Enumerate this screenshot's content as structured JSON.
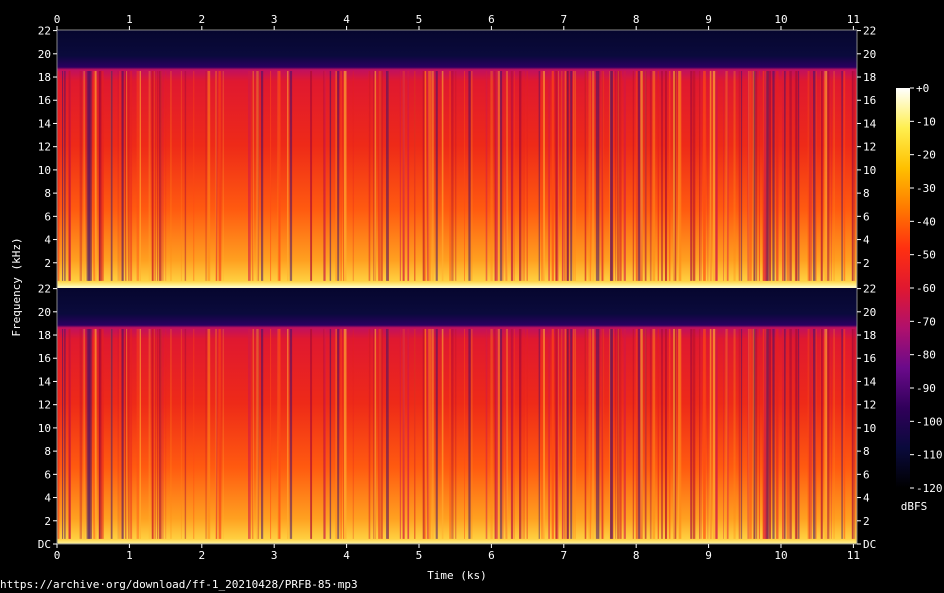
{
  "chart_data": {
    "type": "heatmap",
    "subtype": "spectrogram",
    "channels": 2,
    "xlabel": "Time (ks)",
    "ylabel": "Frequency (kHz)",
    "xlim": [
      0,
      11.05
    ],
    "ylim": [
      0,
      22.05
    ],
    "x_ticks": [
      "0",
      "1",
      "2",
      "3",
      "4",
      "5",
      "6",
      "7",
      "8",
      "9",
      "10",
      "11"
    ],
    "y_ticks_top": [
      "2",
      "4",
      "6",
      "8",
      "10",
      "12",
      "14",
      "16",
      "18",
      "20",
      "22"
    ],
    "y_ticks_bottom": [
      "DC",
      "2",
      "4",
      "6",
      "8",
      "10",
      "12",
      "14",
      "16",
      "18",
      "20",
      "22"
    ],
    "top_tick_22": "22",
    "cutoff_khz": 19,
    "colorbar": {
      "label": "dBFS",
      "range": [
        -120,
        0
      ],
      "ticks": [
        "+0",
        "-10",
        "-20",
        "-30",
        "-40",
        "-50",
        "-60",
        "-70",
        "-80",
        "-90",
        "-100",
        "-110",
        "-120"
      ]
    },
    "colormap": [
      "#000000",
      "#0a0a3c",
      "#30005a",
      "#6a0a8a",
      "#b0106c",
      "#e01830",
      "#ff3010",
      "#ff7a00",
      "#ffc000",
      "#ffef50",
      "#ffffff"
    ]
  },
  "source": "https://archive·org/download/ff-1_20210428/PRFB-85·mp3"
}
